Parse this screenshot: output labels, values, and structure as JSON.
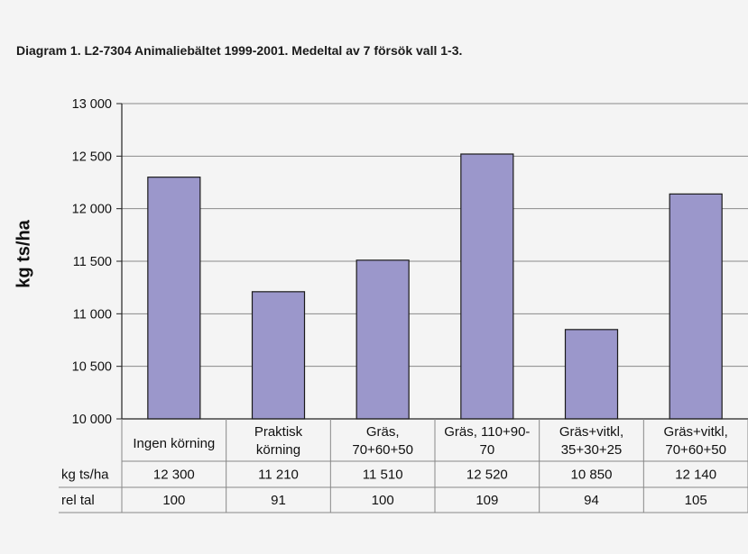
{
  "title": "Diagram 1. L2-7304 Animaliebältet 1999-2001. Medeltal av 7 försök vall 1-3.",
  "chart_data": {
    "type": "bar",
    "ylabel": "kg ts/ha",
    "ylim": [
      10000,
      13000
    ],
    "yticks": [
      10000,
      10500,
      11000,
      11500,
      12000,
      12500,
      13000
    ],
    "ytick_labels": [
      "10 000",
      "10 500",
      "11 000",
      "11 500",
      "12 000",
      "12 500",
      "13 000"
    ],
    "grid": true,
    "bar_color": "#9b97cb",
    "categories": [
      [
        "Ingen körning"
      ],
      [
        "Praktisk",
        "körning"
      ],
      [
        "Gräs,",
        "70+60+50"
      ],
      [
        "Gräs, 110+90-",
        "70"
      ],
      [
        "Gräs+vitkl,",
        "35+30+25"
      ],
      [
        "Gräs+vitkl,",
        "70+60+50"
      ]
    ],
    "values": [
      12300,
      11210,
      11510,
      12520,
      10850,
      12140
    ],
    "table": {
      "rows": [
        {
          "label": "kg ts/ha",
          "values": [
            "12 300",
            "11 210",
            "11 510",
            "12 520",
            "10 850",
            "12 140"
          ]
        },
        {
          "label": "rel tal",
          "values": [
            "100",
            "91",
            "100",
            "109",
            "94",
            "105"
          ]
        }
      ]
    }
  }
}
